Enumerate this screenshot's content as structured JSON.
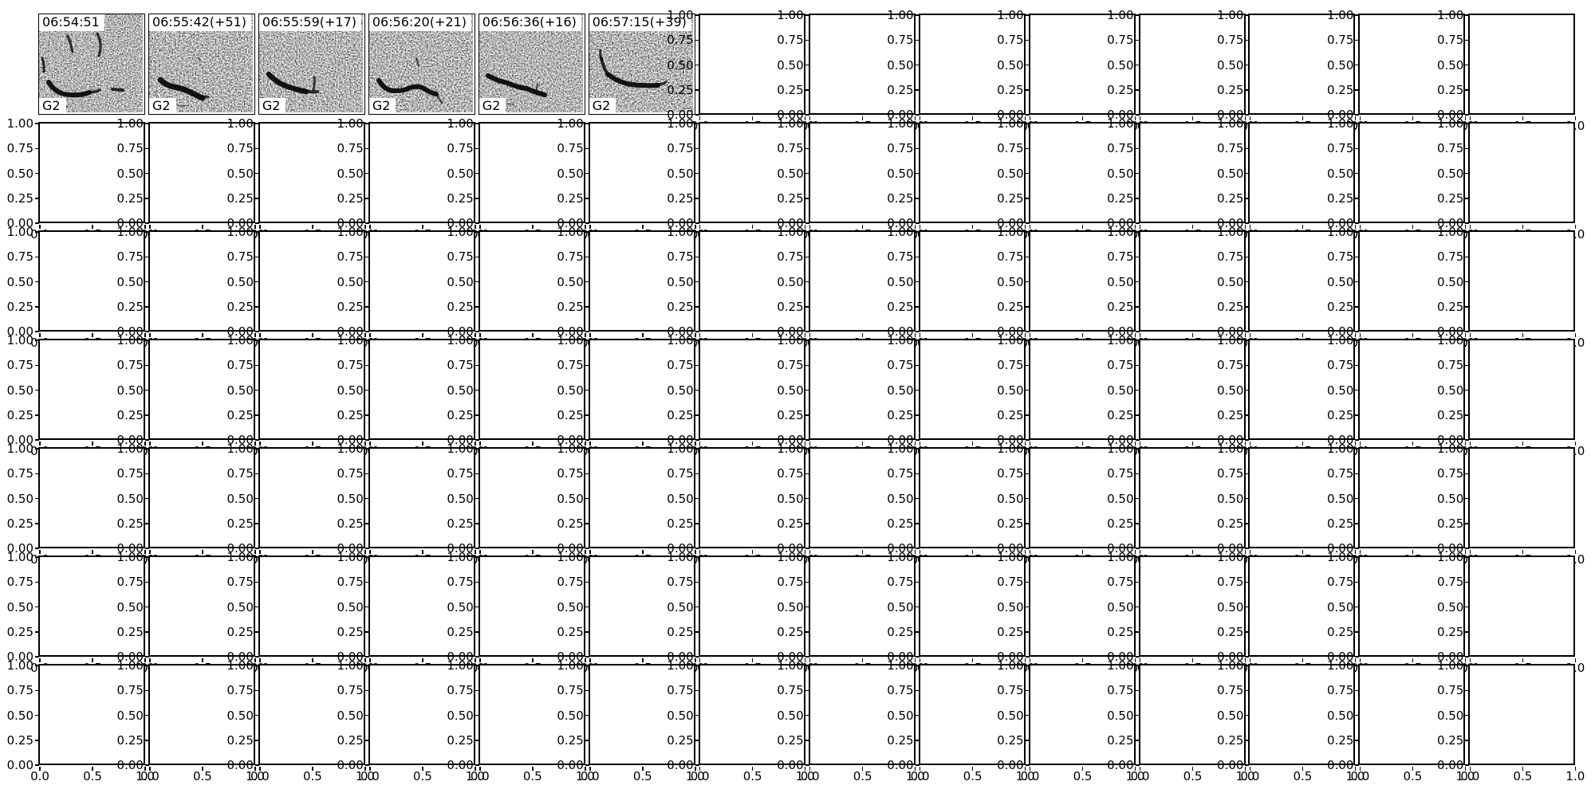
{
  "figure": {
    "kind": "subplot-grid",
    "background": "#ffffff",
    "grid": {
      "rows": 7,
      "cols": 14
    },
    "y_tick_labels": [
      "1.00",
      "0.75",
      "0.50",
      "0.25",
      "0.00"
    ],
    "x_tick_labels": [
      "0.0",
      "0.5",
      "1.0"
    ],
    "spectrograms": [
      {
        "row": 0,
        "col": 0,
        "title": "06:54:51",
        "label": "G2"
      },
      {
        "row": 0,
        "col": 1,
        "title": "06:55:42(+51)",
        "label": "G2"
      },
      {
        "row": 0,
        "col": 2,
        "title": "06:55:59(+17)",
        "label": "G2"
      },
      {
        "row": 0,
        "col": 3,
        "title": "06:56:20(+21)",
        "label": "G2"
      },
      {
        "row": 0,
        "col": 4,
        "title": "06:56:36(+16)",
        "label": "G2"
      },
      {
        "row": 0,
        "col": 5,
        "title": "06:57:15(+39)",
        "label": "G2"
      }
    ],
    "colors": {
      "spine": "#000000",
      "tick_text": "#000000",
      "image_ink": "#0a0a0a",
      "background": "#ffffff"
    }
  },
  "chart_data": {
    "type": "heatmap",
    "layout": {
      "rows": 7,
      "cols": 14
    },
    "panels": [
      {
        "type": "heatmap",
        "subtype": "spectrogram",
        "row": 0,
        "col": 0,
        "title": "06:54:51",
        "annotation": "G2",
        "colormap": "grayscale",
        "axes": "off"
      },
      {
        "type": "heatmap",
        "subtype": "spectrogram",
        "row": 0,
        "col": 1,
        "title": "06:55:42(+51)",
        "annotation": "G2",
        "colormap": "grayscale",
        "axes": "off"
      },
      {
        "type": "heatmap",
        "subtype": "spectrogram",
        "row": 0,
        "col": 2,
        "title": "06:55:59(+17)",
        "annotation": "G2",
        "colormap": "grayscale",
        "axes": "off"
      },
      {
        "type": "heatmap",
        "subtype": "spectrogram",
        "row": 0,
        "col": 3,
        "title": "06:56:20(+21)",
        "annotation": "G2",
        "colormap": "grayscale",
        "axes": "off"
      },
      {
        "type": "heatmap",
        "subtype": "spectrogram",
        "row": 0,
        "col": 4,
        "title": "06:56:36(+16)",
        "annotation": "G2",
        "colormap": "grayscale",
        "axes": "off"
      },
      {
        "type": "heatmap",
        "subtype": "spectrogram",
        "row": 0,
        "col": 5,
        "title": "06:57:15(+39)",
        "annotation": "G2",
        "colormap": "grayscale",
        "axes": "off"
      }
    ],
    "empty_axes": {
      "count": 92,
      "xlim": [
        0,
        1
      ],
      "ylim": [
        0,
        1
      ],
      "x_ticks": [
        0.0,
        0.5,
        1.0
      ],
      "y_ticks": [
        0.0,
        0.25,
        0.5,
        0.75,
        1.0
      ],
      "x_tick_labels": [
        "0.0",
        "0.5",
        "1.0"
      ],
      "y_tick_labels": [
        "0.00",
        "0.25",
        "0.50",
        "0.75",
        "1.00"
      ],
      "grid": false,
      "data": []
    }
  }
}
